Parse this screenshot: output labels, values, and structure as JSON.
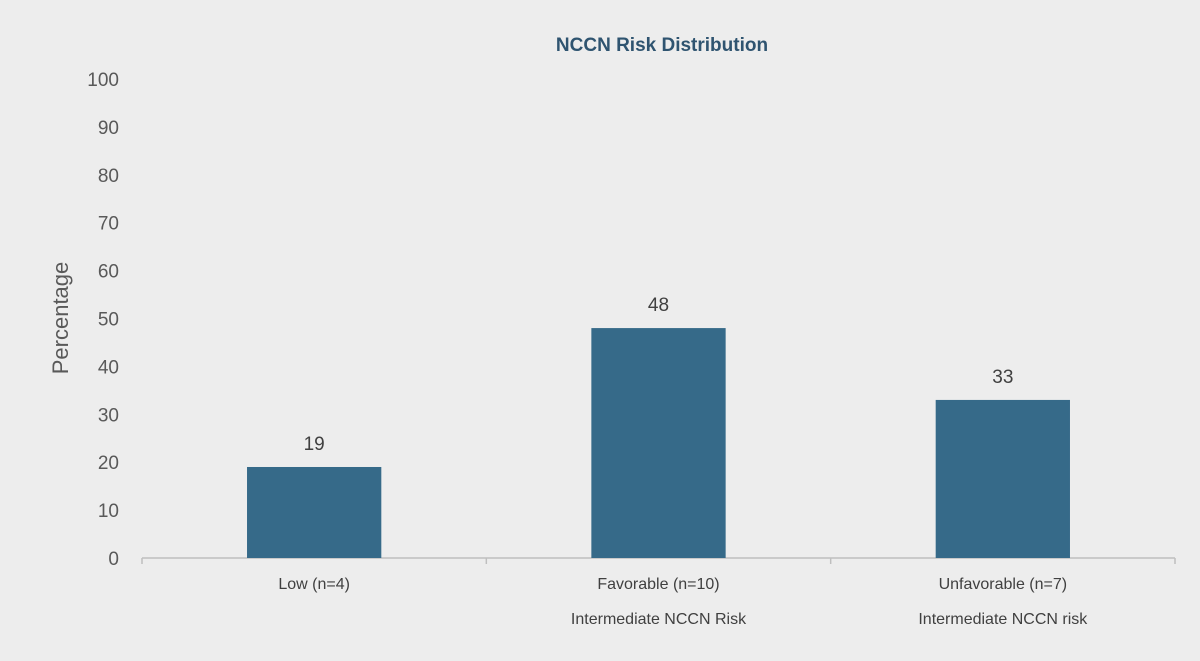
{
  "chart_data": {
    "type": "bar",
    "title": "NCCN Risk Distribution",
    "xlabel": "",
    "ylabel": "Percentage",
    "ylim": [
      0,
      100
    ],
    "yticks": [
      "0",
      "10",
      "20",
      "30",
      "40",
      "50",
      "60",
      "70",
      "80",
      "90",
      "100"
    ],
    "categories": [
      {
        "line1": "Low (n=4)",
        "line2": ""
      },
      {
        "line1": "Favorable (n=10)",
        "line2": "Intermediate NCCN Risk"
      },
      {
        "line1": "Unfavorable (n=7)",
        "line2": "Intermediate NCCN risk"
      }
    ],
    "values": [
      19,
      48,
      33
    ],
    "value_labels": [
      "19",
      "48",
      "33"
    ],
    "bar_color": "#366a89",
    "grid": false,
    "legend": "none"
  }
}
